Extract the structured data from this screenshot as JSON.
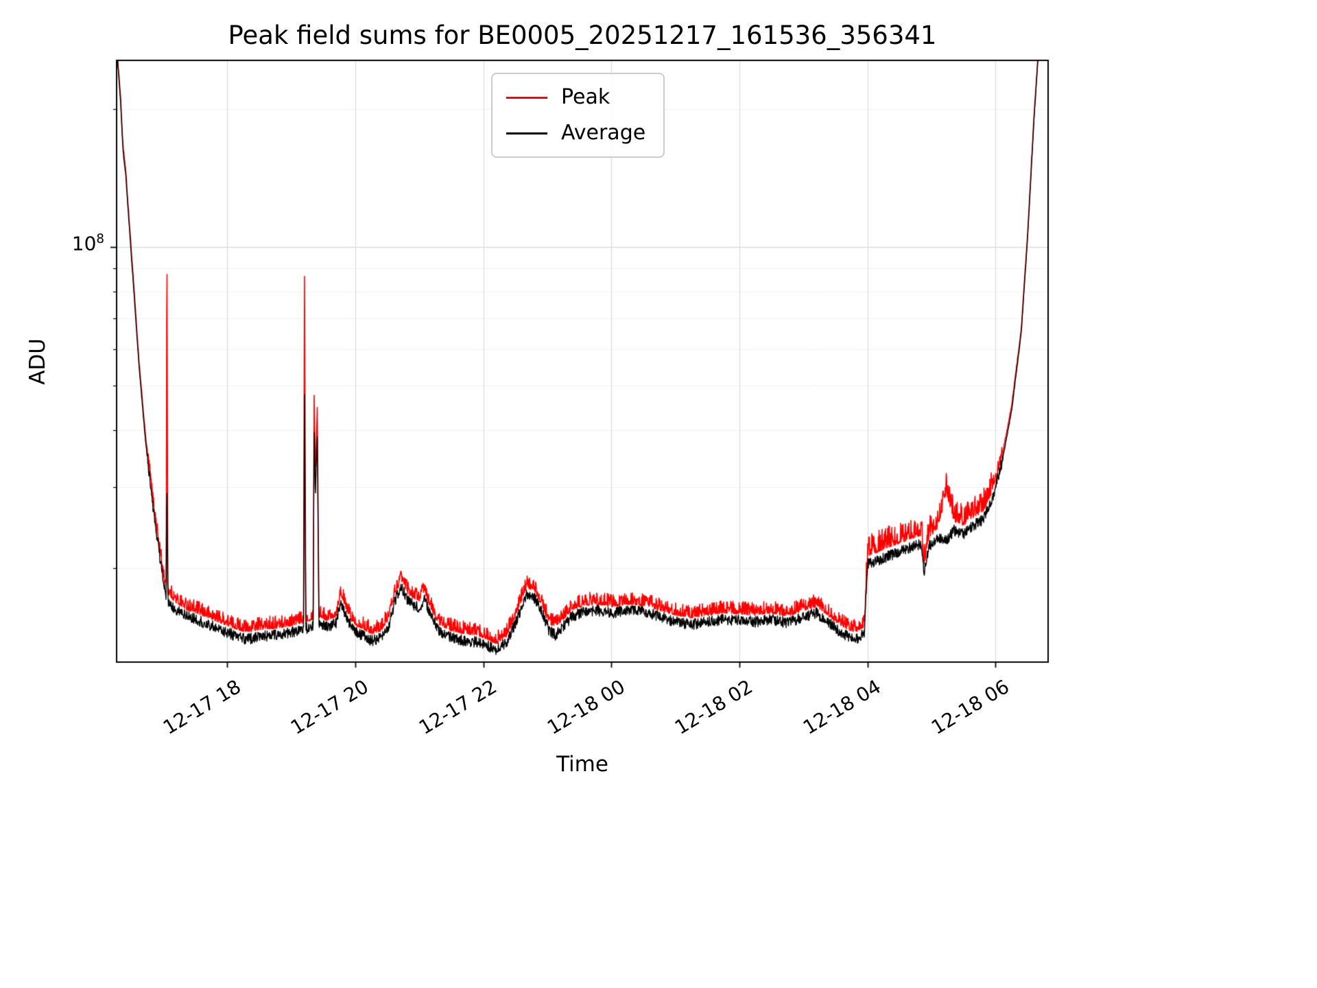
{
  "chart_data": {
    "type": "line",
    "title": "Peak field sums for BE0005_20251217_161536_356341",
    "xlabel": "Time",
    "ylabel": "ADU",
    "yscale": "log",
    "grid": true,
    "legend_position": "upper center",
    "xlim": [
      16.27,
      30.82
    ],
    "ylim": [
      12500000.0,
      255000000.0
    ],
    "x_unit": "hours since 12-17 00:00",
    "x_ticks": [
      {
        "value": 18,
        "label": "12-17 18"
      },
      {
        "value": 20,
        "label": "12-17 20"
      },
      {
        "value": 22,
        "label": "12-17 22"
      },
      {
        "value": 24,
        "label": "12-18 00"
      },
      {
        "value": 26,
        "label": "12-18 02"
      },
      {
        "value": 28,
        "label": "12-18 04"
      },
      {
        "value": 30,
        "label": "12-18 06"
      }
    ],
    "y_tick_label": {
      "base": "10",
      "exp": "8"
    },
    "series": [
      {
        "name": "Peak",
        "color": "#ff0000",
        "column": 2
      },
      {
        "name": "Average",
        "color": "#000000",
        "column": 1
      }
    ],
    "noise": {
      "seed": 1234,
      "avg_amp": 0.012,
      "peak_amp": 0.028
    },
    "points": [
      [
        16.28,
        260000000.0,
        264000000.0
      ],
      [
        16.33,
        210000000.0,
        214000000.0
      ],
      [
        16.37,
        162000000.0,
        165000000.0
      ],
      [
        16.41,
        145000000.0,
        148000000.0
      ],
      [
        16.46,
        115000000.0,
        117000000.0
      ],
      [
        16.54,
        80000000.0,
        82000000.0
      ],
      [
        16.62,
        55000000.0,
        56000000.0
      ],
      [
        16.72,
        38000000.0,
        39000000.0
      ],
      [
        16.84,
        27000000.0,
        27700000.0
      ],
      [
        16.96,
        20500000.0,
        21100000.0
      ],
      [
        17.02,
        18000000.0,
        18600000.0
      ],
      [
        17.045,
        17200000.0,
        17900000.0
      ],
      [
        17.055,
        32000000.0,
        120000000.0
      ],
      [
        17.07,
        17000000.0,
        17700000.0
      ],
      [
        17.2,
        16200000.0,
        16900000.0
      ],
      [
        17.35,
        15800000.0,
        16400000.0
      ],
      [
        17.5,
        15500000.0,
        16100000.0
      ],
      [
        17.7,
        15100000.0,
        15700000.0
      ],
      [
        17.9,
        14700000.0,
        15300000.0
      ],
      [
        18.1,
        14300000.0,
        14900000.0
      ],
      [
        18.3,
        14000000.0,
        14600000.0
      ],
      [
        18.5,
        14200000.0,
        14800000.0
      ],
      [
        18.75,
        14300000.0,
        14900000.0
      ],
      [
        19.0,
        14500000.0,
        15100000.0
      ],
      [
        19.19,
        14700000.0,
        15300000.0
      ],
      [
        19.205,
        50000000.0,
        92000000.0
      ],
      [
        19.225,
        14800000.0,
        15400000.0
      ],
      [
        19.3,
        14900000.0,
        15500000.0
      ],
      [
        19.34,
        15000000.0,
        15600000.0
      ],
      [
        19.355,
        40000000.0,
        48000000.0
      ],
      [
        19.375,
        29000000.0,
        32000000.0
      ],
      [
        19.405,
        39000000.0,
        45000000.0
      ],
      [
        19.43,
        15200000.0,
        15800000.0
      ],
      [
        19.55,
        14900000.0,
        15500000.0
      ],
      [
        19.7,
        15200000.0,
        15800000.0
      ],
      [
        19.77,
        17000000.0,
        17700000.0
      ],
      [
        19.85,
        15800000.0,
        16400000.0
      ],
      [
        19.97,
        14600000.0,
        15200000.0
      ],
      [
        20.1,
        14300000.0,
        14900000.0
      ],
      [
        20.25,
        13900000.0,
        14500000.0
      ],
      [
        20.4,
        14100000.0,
        14700000.0
      ],
      [
        20.52,
        15000000.0,
        15600000.0
      ],
      [
        20.62,
        17000000.0,
        17700000.0
      ],
      [
        20.72,
        18200000.0,
        18900000.0
      ],
      [
        20.82,
        17000000.0,
        17700000.0
      ],
      [
        20.92,
        16600000.0,
        17300000.0
      ],
      [
        21.0,
        16400000.0,
        17100000.0
      ],
      [
        21.08,
        17200000.0,
        17900000.0
      ],
      [
        21.16,
        16000000.0,
        16600000.0
      ],
      [
        21.3,
        14600000.0,
        15200000.0
      ],
      [
        21.5,
        14100000.0,
        14700000.0
      ],
      [
        21.7,
        13900000.0,
        14500000.0
      ],
      [
        21.9,
        13800000.0,
        14400000.0
      ],
      [
        22.05,
        13600000.0,
        14100000.0
      ],
      [
        22.2,
        13300000.0,
        13800000.0
      ],
      [
        22.35,
        13700000.0,
        14200000.0
      ],
      [
        22.5,
        15200000.0,
        15800000.0
      ],
      [
        22.68,
        17600000.0,
        18300000.0
      ],
      [
        22.8,
        17200000.0,
        17900000.0
      ],
      [
        22.92,
        16000000.0,
        16600000.0
      ],
      [
        23.02,
        14700000.0,
        15300000.0
      ],
      [
        23.12,
        14300000.0,
        14900000.0
      ],
      [
        23.22,
        14800000.0,
        15400000.0
      ],
      [
        23.38,
        15700000.0,
        16300000.0
      ],
      [
        23.58,
        16100000.0,
        16700000.0
      ],
      [
        23.78,
        16200000.0,
        16800000.0
      ],
      [
        24.0,
        16000000.0,
        16600000.0
      ],
      [
        24.25,
        16200000.0,
        16800000.0
      ],
      [
        24.5,
        16100000.0,
        16700000.0
      ],
      [
        24.75,
        15700000.0,
        16300000.0
      ],
      [
        25.0,
        15300000.0,
        15900000.0
      ],
      [
        25.25,
        15100000.0,
        15700000.0
      ],
      [
        25.5,
        15300000.0,
        15900000.0
      ],
      [
        25.75,
        15500000.0,
        16100000.0
      ],
      [
        26.0,
        15400000.0,
        16000000.0
      ],
      [
        26.25,
        15300000.0,
        15900000.0
      ],
      [
        26.5,
        15500000.0,
        16100000.0
      ],
      [
        26.75,
        15200000.0,
        15800000.0
      ],
      [
        27.0,
        15700000.0,
        16300000.0
      ],
      [
        27.2,
        16000000.0,
        16600000.0
      ],
      [
        27.4,
        15200000.0,
        15800000.0
      ],
      [
        27.6,
        14400000.0,
        15000000.0
      ],
      [
        27.8,
        14000000.0,
        14600000.0
      ],
      [
        27.95,
        14400000.0,
        15000000.0
      ],
      [
        28.0,
        20500000.0,
        21500000.0
      ],
      [
        28.15,
        20800000.0,
        21900000.0
      ],
      [
        28.3,
        21200000.0,
        22400000.0
      ],
      [
        28.45,
        21600000.0,
        22800000.0
      ],
      [
        28.6,
        22000000.0,
        23200000.0
      ],
      [
        28.75,
        22400000.0,
        23600000.0
      ],
      [
        28.84,
        22600000.0,
        23800000.0
      ],
      [
        28.88,
        19500000.0,
        20300000.0
      ],
      [
        28.96,
        22400000.0,
        23600000.0
      ],
      [
        29.1,
        23300000.0,
        24600000.0
      ],
      [
        29.23,
        23000000.0,
        29500000.0
      ],
      [
        29.35,
        24200000.0,
        25500000.0
      ],
      [
        29.5,
        23800000.0,
        25100000.0
      ],
      [
        29.65,
        24800000.0,
        26100000.0
      ],
      [
        29.8,
        25500000.0,
        26800000.0
      ],
      [
        29.95,
        28500000.0,
        29700000.0
      ],
      [
        30.1,
        34000000.0,
        35000000.0
      ],
      [
        30.25,
        44000000.0,
        45000000.0
      ],
      [
        30.4,
        65000000.0,
        66000000.0
      ],
      [
        30.5,
        105000000.0,
        107000000.0
      ],
      [
        30.6,
        190000000.0,
        193000000.0
      ],
      [
        30.68,
        280000000.0,
        284000000.0
      ],
      [
        30.8,
        310000000.0,
        314000000.0
      ]
    ]
  }
}
